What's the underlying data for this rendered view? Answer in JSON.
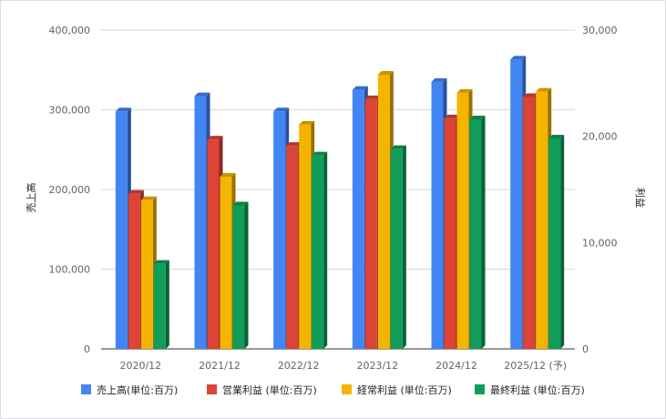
{
  "chart_data": {
    "type": "bar",
    "style": "3d-clustered",
    "categories": [
      "2020/12",
      "2021/12",
      "2022/12",
      "2023/12",
      "2024/12",
      "2025/12 (予)"
    ],
    "left_axis": {
      "title": "売上高",
      "range": [
        0,
        400000
      ],
      "ticks": [
        "0",
        "100,000",
        "200,000",
        "300,000",
        "400,000"
      ],
      "tick_values": [
        0,
        100000,
        200000,
        300000,
        400000
      ]
    },
    "right_axis": {
      "title": "利益",
      "range": [
        0,
        30000
      ],
      "ticks": [
        "0",
        "10,000",
        "20,000",
        "30,000"
      ],
      "tick_values": [
        0,
        10000,
        20000,
        30000
      ]
    },
    "series": [
      {
        "name": "売上高(単位:百万)",
        "axis": "left",
        "color": "#4285f4",
        "values": [
          298000,
          317000,
          298000,
          325000,
          335000,
          363000
        ]
      },
      {
        "name": "営業利益 (単位:百万)",
        "axis": "right",
        "color": "#db4437",
        "values": [
          14600,
          19700,
          19100,
          23500,
          21700,
          23700
        ]
      },
      {
        "name": "経常利益 (単位:百万)",
        "axis": "right",
        "color": "#f4b400",
        "values": [
          14000,
          16200,
          21100,
          25800,
          24100,
          24200
        ]
      },
      {
        "name": "最終利益 (単位:百万)",
        "axis": "right",
        "color": "#0f9d58",
        "values": [
          8000,
          13500,
          18200,
          18800,
          21600,
          19800
        ]
      }
    ],
    "grid": true,
    "legend_position": "bottom"
  }
}
